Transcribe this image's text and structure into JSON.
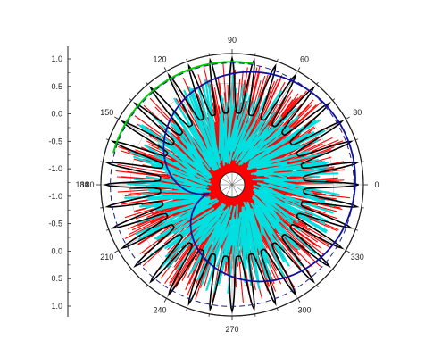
{
  "chart_data": {
    "type": "polar",
    "title": "",
    "angle_unit": "degrees",
    "angle_ticks": [
      0,
      30,
      60,
      90,
      120,
      150,
      180,
      210,
      240,
      270,
      300,
      330
    ],
    "angle_tick_labels": [
      "0",
      "30",
      "60",
      "90",
      "120",
      "150",
      "180",
      "210",
      "240",
      "270",
      "300",
      "330"
    ],
    "radial_axis": {
      "tick_labels": [
        "1.0",
        "0.5",
        "0.0",
        "-0.5",
        "-1.0",
        "-1.0",
        "-0.5",
        "0.0",
        "0.5",
        "1.0"
      ],
      "range": [
        -1.0,
        1.0
      ],
      "center_label": "180"
    },
    "grid": true,
    "legend": "none",
    "series": [
      {
        "label_color": "#000000",
        "style": "spiky line",
        "lobes": 36,
        "radius_min": 0.5,
        "radius_max": 0.96
      },
      {
        "label_color": "#ff0000",
        "style": "dense spikes",
        "radius_min": 0.05,
        "radius_max": 0.92
      },
      {
        "label_color": "#00e0e0",
        "style": "dense spikes",
        "radius_min": 0.05,
        "radius_max": 0.82
      },
      {
        "label_color": "#1010a0",
        "style": "spiral line",
        "radius_min": 0.1,
        "radius_max": 0.94
      },
      {
        "label_color": "#00cc00",
        "style": "arc",
        "theta_start": 80,
        "theta_end": 165,
        "radius": 0.93
      }
    ],
    "reference_circles": [
      {
        "label_color": "#1a1a8c",
        "style": "dashed",
        "radius": 0.92
      },
      {
        "label_color": "#222222",
        "style": "solid",
        "radius": 1.0
      }
    ]
  }
}
